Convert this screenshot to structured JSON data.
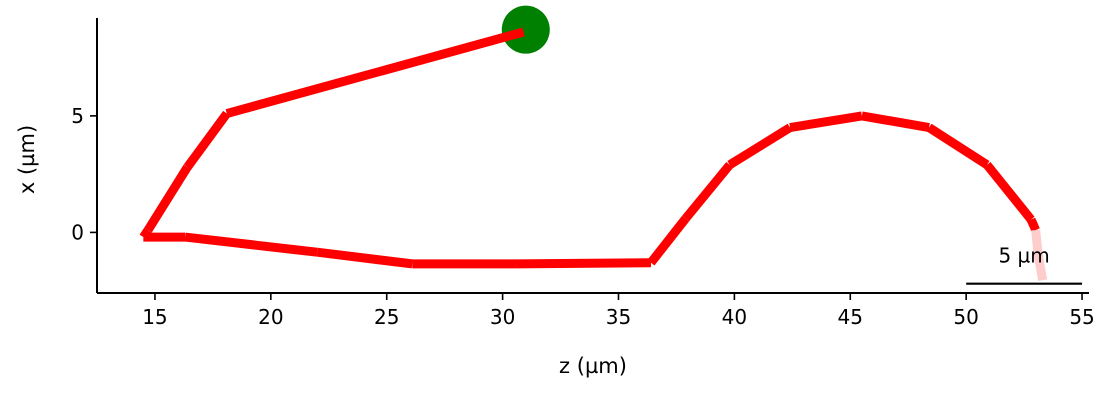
{
  "chart_data": {
    "type": "line",
    "title": "",
    "xlabel": "z (µm)",
    "ylabel": "x (µm)",
    "xlim": [
      12.5,
      55.3
    ],
    "ylim": [
      -2.6,
      9.2
    ],
    "xticks": [
      15,
      20,
      25,
      30,
      35,
      40,
      45,
      50,
      55
    ],
    "yticks": [
      0,
      5
    ],
    "grid": false,
    "legend": "none",
    "series": [
      {
        "color": "#ff0000",
        "faded_tail_color": "#ffcccc",
        "points": [
          [
            30.9,
            8.6
          ],
          [
            18.1,
            5.1
          ],
          [
            16.4,
            2.8
          ],
          [
            14.7,
            0.1
          ],
          [
            14.5,
            -0.2
          ],
          [
            16.3,
            -0.2
          ],
          [
            22.0,
            -0.85
          ],
          [
            26.1,
            -1.35
          ],
          [
            30.6,
            -1.35
          ],
          [
            36.4,
            -1.3
          ],
          [
            37.9,
            0.6
          ],
          [
            39.8,
            2.9
          ],
          [
            42.4,
            4.5
          ],
          [
            45.5,
            5.0
          ],
          [
            48.4,
            4.5
          ],
          [
            50.9,
            2.9
          ],
          [
            52.8,
            0.55
          ],
          [
            53.0,
            0.1
          ],
          [
            53.1,
            -0.9
          ],
          [
            53.3,
            -2.05
          ]
        ],
        "faded_from_index": 17
      }
    ],
    "start_marker": {
      "x": 31.0,
      "y": 8.7,
      "color": "#008000"
    },
    "scale_bar": {
      "label": "5 µm",
      "x_start": 50.0,
      "x_end": 55.0,
      "y": -2.2
    }
  }
}
